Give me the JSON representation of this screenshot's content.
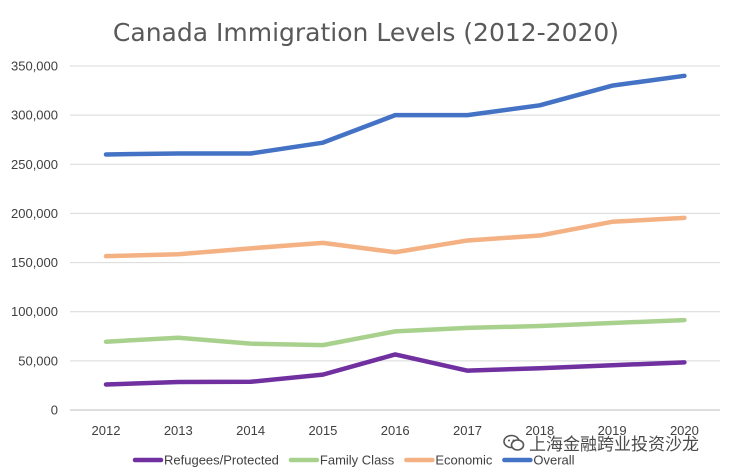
{
  "chart_data": {
    "type": "line",
    "title": "Canada Immigration Levels (2012-2020)",
    "xlabel": "",
    "ylabel": "",
    "categories": [
      "2012",
      "2013",
      "2014",
      "2015",
      "2016",
      "2017",
      "2018",
      "2019",
      "2020"
    ],
    "ylim": [
      0,
      350000
    ],
    "yticks": [
      0,
      50000,
      100000,
      150000,
      200000,
      250000,
      300000,
      350000
    ],
    "ytick_labels": [
      "0",
      "50,000",
      "100,000",
      "150,000",
      "200,000",
      "250,000",
      "300,000",
      "350,000"
    ],
    "grid": true,
    "legend_position": "bottom",
    "series": [
      {
        "name": "Refugees/Protected",
        "color": "#7030a0",
        "values": [
          26000,
          28500,
          28700,
          36000,
          56500,
          40000,
          42500,
          45500,
          48500
        ]
      },
      {
        "name": "Family Class",
        "color": "#a9d18e",
        "values": [
          69500,
          73500,
          67500,
          66000,
          80000,
          83500,
          85500,
          88500,
          91500
        ]
      },
      {
        "name": "Economic",
        "color": "#f4b183",
        "values": [
          156500,
          158500,
          164500,
          170000,
          160500,
          172500,
          177500,
          191500,
          195500
        ]
      },
      {
        "name": "Overall",
        "color": "#4472c4",
        "values": [
          260000,
          261000,
          261000,
          272000,
          300000,
          300000,
          310000,
          330000,
          340000
        ]
      }
    ]
  },
  "watermark": {
    "text": "上海金融跨业投资沙龙",
    "icon": "wechat-icon"
  }
}
